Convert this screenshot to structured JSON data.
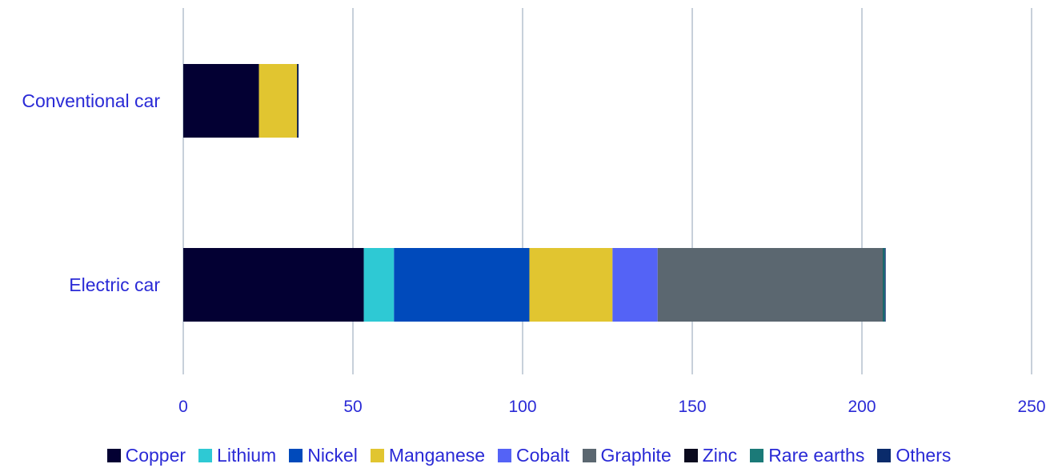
{
  "chart_data": {
    "type": "bar",
    "orientation": "horizontal",
    "stacked": true,
    "title": "",
    "xlabel": "",
    "ylabel": "",
    "xlim": [
      0,
      250
    ],
    "xticks": [
      0,
      50,
      100,
      150,
      200,
      250
    ],
    "grid": "vertical",
    "legend_position": "bottom",
    "categories": [
      "Conventional car",
      "Electric car"
    ],
    "series": [
      {
        "name": "Copper",
        "color": "#030033",
        "values": [
          22.3,
          53.2
        ]
      },
      {
        "name": "Lithium",
        "color": "#2ec9d4",
        "values": [
          0,
          8.9
        ]
      },
      {
        "name": "Nickel",
        "color": "#004abb",
        "values": [
          0,
          39.9
        ]
      },
      {
        "name": "Manganese",
        "color": "#e1c530",
        "values": [
          11.2,
          24.5
        ]
      },
      {
        "name": "Cobalt",
        "color": "#5463f6",
        "values": [
          0,
          13.3
        ]
      },
      {
        "name": "Graphite",
        "color": "#5b6770",
        "values": [
          0,
          66.3
        ]
      },
      {
        "name": "Zinc",
        "color": "#0a0a1e",
        "values": [
          0.2,
          0.1
        ]
      },
      {
        "name": "Rare earths",
        "color": "#1b7a78",
        "values": [
          0,
          0.5
        ]
      },
      {
        "name": "Others",
        "color": "#0a2b6b",
        "values": [
          0.3,
          0.3
        ]
      }
    ]
  }
}
